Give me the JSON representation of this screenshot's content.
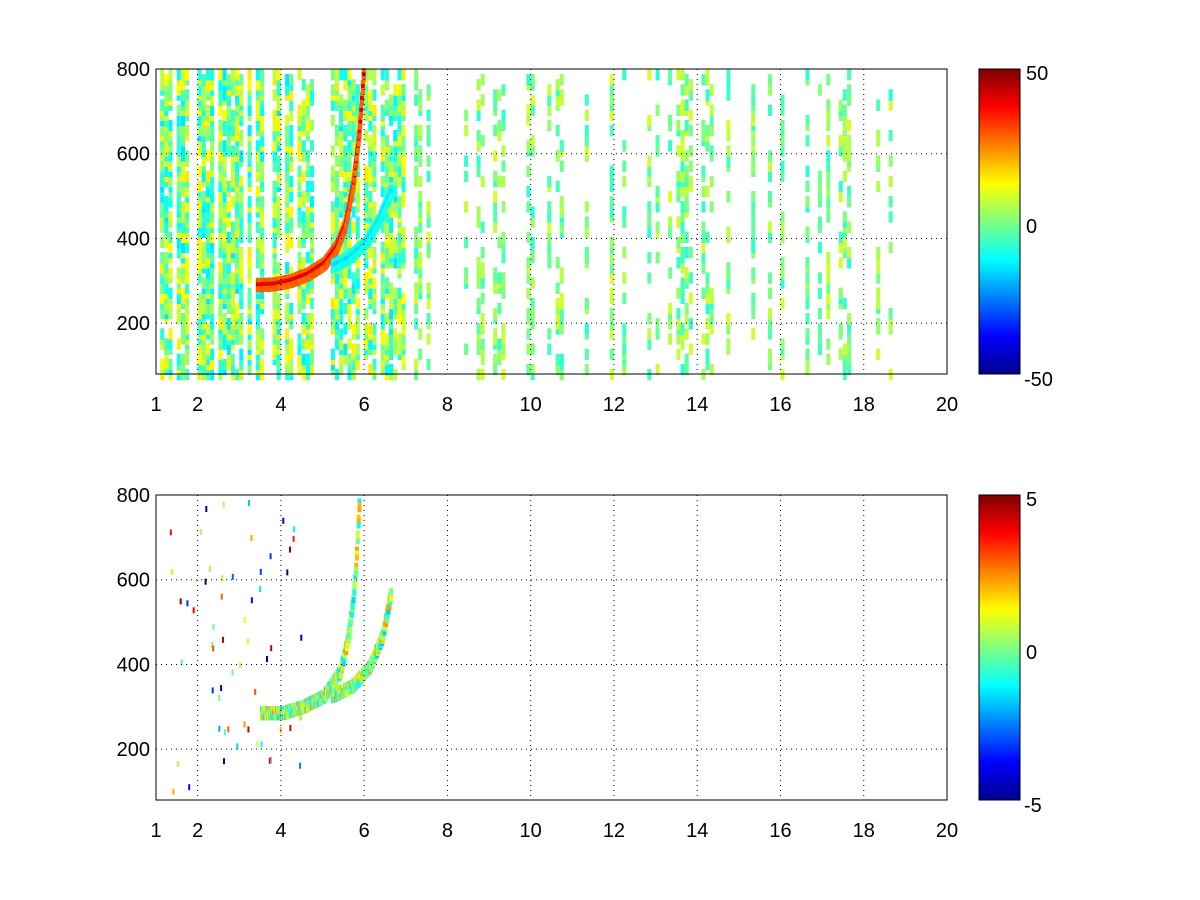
{
  "chart_data": [
    {
      "type": "heatmap",
      "title": "",
      "xlabel": "",
      "ylabel": "",
      "xlim": [
        1,
        20
      ],
      "ylim": [
        80,
        800
      ],
      "x_ticks": [
        1,
        2,
        4,
        6,
        8,
        10,
        12,
        14,
        16,
        18,
        20
      ],
      "y_ticks": [
        200,
        400,
        600,
        800
      ],
      "grid": true,
      "colormap": "jet",
      "colorbar": {
        "limits": [
          -50,
          50
        ],
        "tick_labels": [
          "50",
          "0",
          "-50"
        ]
      },
      "features": [
        {
          "description_values": "positive ridge",
          "points": [
            [
              3.4,
              280
            ],
            [
              3.8,
              282
            ],
            [
              4.2,
              290
            ],
            [
              4.6,
              305
            ],
            [
              5.0,
              330
            ],
            [
              5.3,
              370
            ],
            [
              5.5,
              420
            ],
            [
              5.7,
              520
            ],
            [
              5.85,
              650
            ],
            [
              5.95,
              790
            ]
          ],
          "value": 40
        },
        {
          "description_values": "negative ridge",
          "points": [
            [
              5.2,
              325
            ],
            [
              5.6,
              345
            ],
            [
              6.0,
              380
            ],
            [
              6.3,
              430
            ],
            [
              6.6,
              500
            ]
          ],
          "value": -15
        }
      ],
      "colors": {
        "positive": "#b00000",
        "negative": "#00c8ff",
        "background_noise": "#b8ff40"
      }
    },
    {
      "type": "heatmap",
      "title": "",
      "xlabel": "",
      "ylabel": "",
      "xlim": [
        1,
        20
      ],
      "ylim": [
        80,
        800
      ],
      "x_ticks": [
        1,
        2,
        4,
        6,
        8,
        10,
        12,
        14,
        16,
        18,
        20
      ],
      "y_ticks": [
        200,
        400,
        600,
        800
      ],
      "grid": true,
      "colormap": "jet",
      "colorbar": {
        "limits": [
          -5,
          5
        ],
        "tick_labels": [
          "5",
          "0",
          "-5"
        ]
      },
      "features": [
        {
          "description_values": "ridge",
          "points": [
            [
              3.5,
              280
            ],
            [
              4.0,
              280
            ],
            [
              4.5,
              295
            ],
            [
              5.0,
              320
            ],
            [
              5.4,
              380
            ],
            [
              5.6,
              470
            ],
            [
              5.75,
              600
            ],
            [
              5.85,
              790
            ]
          ],
          "value": 0.3
        },
        {
          "description_values": "secondary ridge",
          "points": [
            [
              5.2,
              320
            ],
            [
              5.7,
              345
            ],
            [
              6.1,
              390
            ],
            [
              6.4,
              460
            ],
            [
              6.6,
              560
            ]
          ],
          "value": 0.3
        }
      ]
    }
  ]
}
